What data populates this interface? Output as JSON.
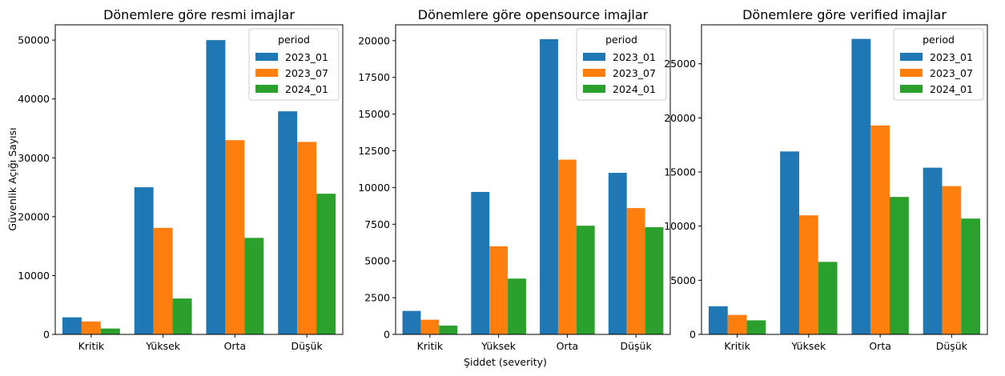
{
  "figure": {
    "shared_xlabel": "Şiddet (severity)",
    "shared_ylabel": "Güvenlik Açığı Sayısı"
  },
  "legend": {
    "title": "period",
    "entries": [
      "2023_01",
      "2023_07",
      "2024_01"
    ]
  },
  "colors": {
    "2023_01": "#1f77b4",
    "2023_07": "#ff7f0e",
    "2024_01": "#2ca02c"
  },
  "chart_data": [
    {
      "type": "bar",
      "title": "Dönemlere göre resmi imajlar",
      "xlabel": "",
      "ylabel": "Güvenlik Açığı Sayısı",
      "categories": [
        "Kritik",
        "Yüksek",
        "Orta",
        "Düşük"
      ],
      "ylim": [
        0,
        52600
      ],
      "yticks": [
        0,
        10000,
        20000,
        30000,
        40000,
        50000
      ],
      "ytick_labels": [
        "0",
        "10000",
        "20000",
        "30000",
        "40000",
        "50000"
      ],
      "legend_position": "top-right",
      "grid": false,
      "series": [
        {
          "name": "2023_01",
          "values": [
            2900,
            25000,
            50000,
            37900
          ]
        },
        {
          "name": "2023_07",
          "values": [
            2200,
            18100,
            33000,
            32700
          ]
        },
        {
          "name": "2024_01",
          "values": [
            1000,
            6100,
            16400,
            23900
          ]
        }
      ]
    },
    {
      "type": "bar",
      "title": "Dönemlere göre opensource imajlar",
      "xlabel": "Şiddet (severity)",
      "ylabel": "",
      "categories": [
        "Kritik",
        "Yüksek",
        "Orta",
        "Düşük"
      ],
      "ylim": [
        0,
        21080
      ],
      "yticks": [
        0,
        2500,
        5000,
        7500,
        10000,
        12500,
        15000,
        17500,
        20000
      ],
      "ytick_labels": [
        "0",
        "2500",
        "5000",
        "7500",
        "10000",
        "12500",
        "15000",
        "17500",
        "20000"
      ],
      "legend_position": "top-right",
      "grid": false,
      "series": [
        {
          "name": "2023_01",
          "values": [
            1600,
            9700,
            20100,
            11000
          ]
        },
        {
          "name": "2023_07",
          "values": [
            1000,
            6000,
            11900,
            8600
          ]
        },
        {
          "name": "2024_01",
          "values": [
            600,
            3800,
            7400,
            7300
          ]
        }
      ]
    },
    {
      "type": "bar",
      "title": "Dönemlere göre verified imajlar",
      "xlabel": "",
      "ylabel": "",
      "categories": [
        "Kritik",
        "Yüksek",
        "Orta",
        "Düşük"
      ],
      "ylim": [
        0,
        28600
      ],
      "yticks": [
        0,
        5000,
        10000,
        15000,
        20000,
        25000
      ],
      "ytick_labels": [
        "0",
        "5000",
        "10000",
        "15000",
        "20000",
        "25000"
      ],
      "legend_position": "top-right",
      "grid": false,
      "series": [
        {
          "name": "2023_01",
          "values": [
            2600,
            16900,
            27300,
            15400
          ]
        },
        {
          "name": "2023_07",
          "values": [
            1800,
            11000,
            19300,
            13700
          ]
        },
        {
          "name": "2024_01",
          "values": [
            1300,
            6700,
            12700,
            10700
          ]
        }
      ]
    }
  ]
}
